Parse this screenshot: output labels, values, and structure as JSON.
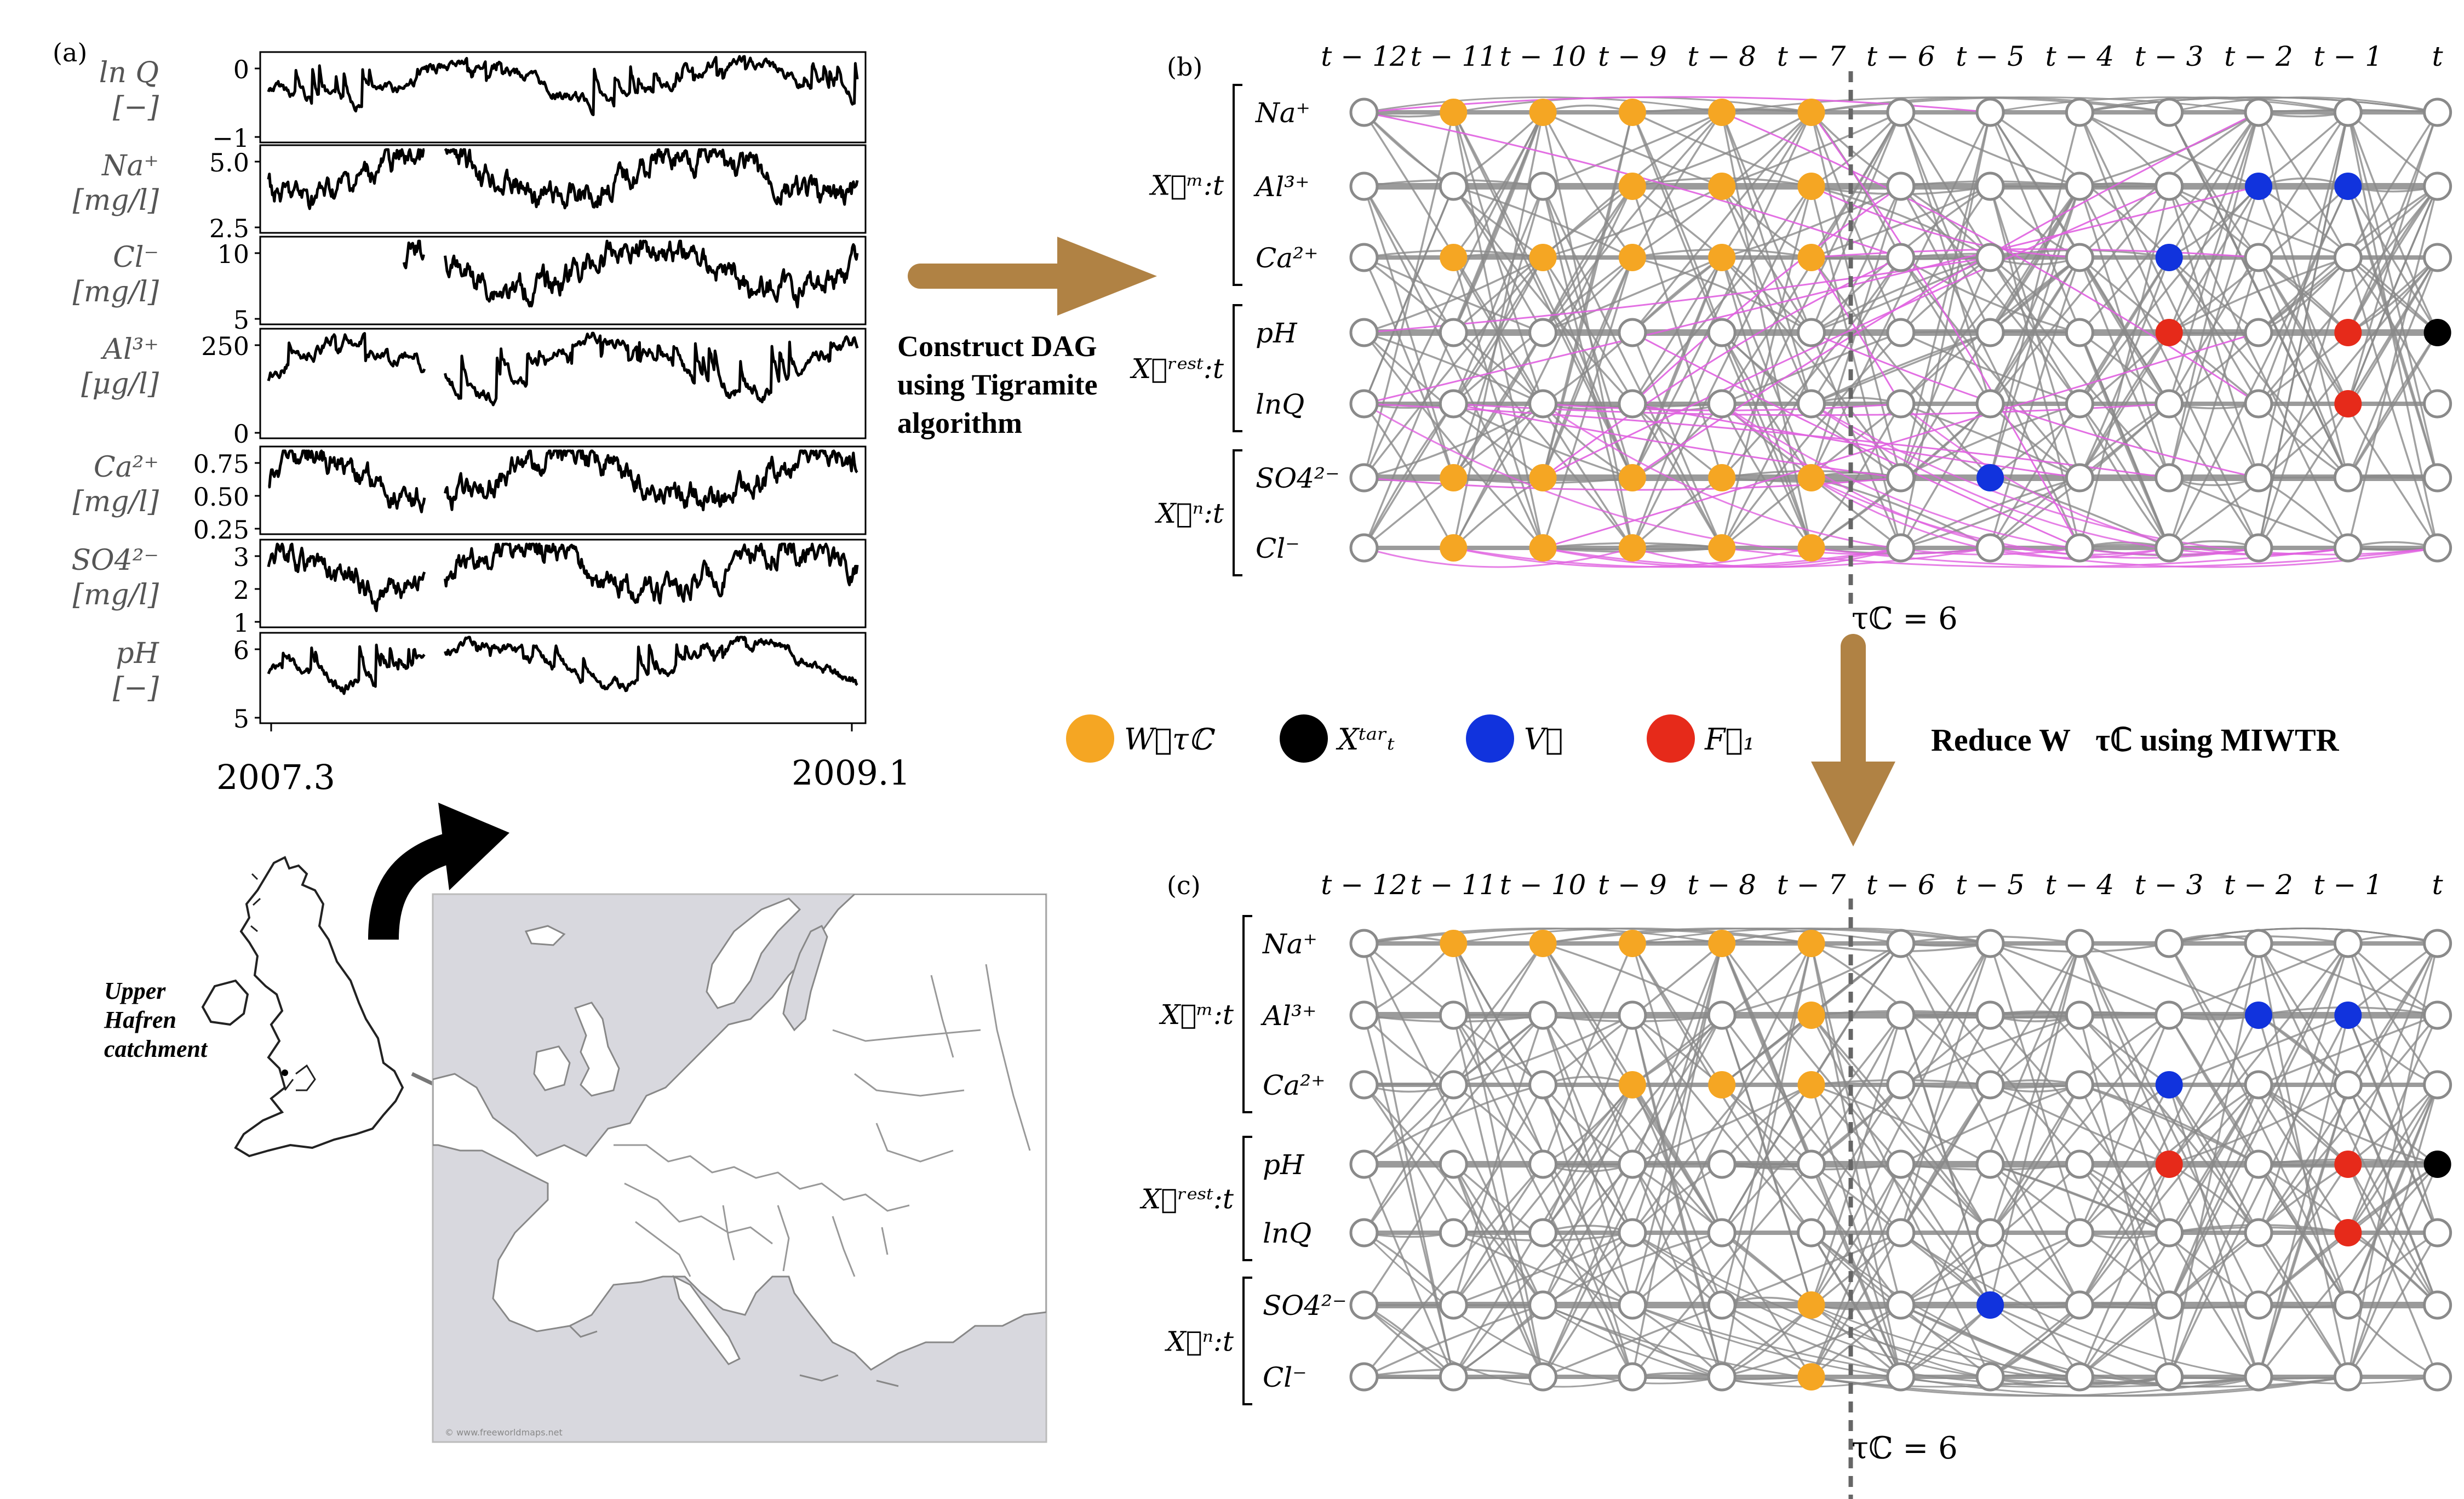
{
  "colors": {
    "orange": "#F5A623",
    "black": "#000000",
    "blue": "#1133DD",
    "red": "#E62A1A",
    "gray": "#888888",
    "magenta": "#E060E0",
    "arrow": "#B08244",
    "mapsea": "#D8D8DE"
  },
  "panel_a": {
    "label": "(a)",
    "date_start": "2007.3",
    "date_end": "2009.1",
    "rows": [
      {
        "name": "ln Q",
        "unit": "[−]",
        "ticks": [
          "0",
          "−1"
        ]
      },
      {
        "name": "Na⁺",
        "unit": "[mg/l]",
        "ticks": [
          "5.0",
          "2.5"
        ]
      },
      {
        "name": "Cl⁻",
        "unit": "[mg/l]",
        "ticks": [
          "10",
          "5"
        ]
      },
      {
        "name": "Al³⁺",
        "unit": "[μg/l]",
        "ticks": [
          "250",
          "0"
        ]
      },
      {
        "name": "Ca²⁺",
        "unit": "[mg/l]",
        "ticks": [
          "0.75",
          "0.50",
          "0.25"
        ]
      },
      {
        "name": "SO4²⁻",
        "unit": "[mg/l]",
        "ticks": [
          "3",
          "2",
          "1"
        ]
      },
      {
        "name": "pH",
        "unit": "[−]",
        "ticks": [
          "6",
          "5"
        ]
      }
    ]
  },
  "arrow1_text": [
    "Construct DAG",
    "using Tigramite",
    "algorithm"
  ],
  "map": {
    "catchment_label": [
      "Upper",
      "Hafren",
      "catchment"
    ],
    "watermark": "© www.freeworldmaps.net"
  },
  "dag": {
    "time_labels": [
      "t − 12",
      "t − 11",
      "t − 10",
      "t − 9",
      "t − 8",
      "t − 7",
      "t − 6",
      "t − 5",
      "t − 4",
      "t − 3",
      "t − 2",
      "t − 1",
      "t"
    ],
    "var_labels": [
      "Na⁺",
      "Al³⁺",
      "Ca²⁺",
      "pH",
      "lnQ",
      "SO4²⁻",
      "Cl⁻"
    ],
    "groups": [
      {
        "label": "X⃗ᵐ:t",
        "rows": [
          0,
          2
        ]
      },
      {
        "label": "X⃗ʳᵉˢᵗ:t",
        "rows": [
          3,
          4
        ]
      },
      {
        "label": "X⃗ⁿ:t",
        "rows": [
          5,
          6
        ]
      }
    ],
    "tau_label": "τℂ = 6"
  },
  "panel_b": {
    "label": "(b)",
    "highlights": [
      {
        "row": 0,
        "col": 1,
        "c": "orange"
      },
      {
        "row": 0,
        "col": 2,
        "c": "orange"
      },
      {
        "row": 0,
        "col": 3,
        "c": "orange"
      },
      {
        "row": 0,
        "col": 4,
        "c": "orange"
      },
      {
        "row": 0,
        "col": 5,
        "c": "orange"
      },
      {
        "row": 1,
        "col": 3,
        "c": "orange"
      },
      {
        "row": 1,
        "col": 4,
        "c": "orange"
      },
      {
        "row": 1,
        "col": 5,
        "c": "orange"
      },
      {
        "row": 1,
        "col": 10,
        "c": "blue"
      },
      {
        "row": 1,
        "col": 11,
        "c": "blue"
      },
      {
        "row": 2,
        "col": 1,
        "c": "orange"
      },
      {
        "row": 2,
        "col": 2,
        "c": "orange"
      },
      {
        "row": 2,
        "col": 3,
        "c": "orange"
      },
      {
        "row": 2,
        "col": 4,
        "c": "orange"
      },
      {
        "row": 2,
        "col": 5,
        "c": "orange"
      },
      {
        "row": 2,
        "col": 9,
        "c": "blue"
      },
      {
        "row": 3,
        "col": 9,
        "c": "red"
      },
      {
        "row": 3,
        "col": 11,
        "c": "red"
      },
      {
        "row": 3,
        "col": 12,
        "c": "black"
      },
      {
        "row": 4,
        "col": 11,
        "c": "red"
      },
      {
        "row": 5,
        "col": 1,
        "c": "orange"
      },
      {
        "row": 5,
        "col": 2,
        "c": "orange"
      },
      {
        "row": 5,
        "col": 3,
        "c": "orange"
      },
      {
        "row": 5,
        "col": 4,
        "c": "orange"
      },
      {
        "row": 5,
        "col": 5,
        "c": "orange"
      },
      {
        "row": 5,
        "col": 7,
        "c": "blue"
      },
      {
        "row": 6,
        "col": 1,
        "c": "orange"
      },
      {
        "row": 6,
        "col": 2,
        "c": "orange"
      },
      {
        "row": 6,
        "col": 3,
        "c": "orange"
      },
      {
        "row": 6,
        "col": 4,
        "c": "orange"
      },
      {
        "row": 6,
        "col": 5,
        "c": "orange"
      }
    ]
  },
  "panel_c": {
    "label": "(c)",
    "highlights": [
      {
        "row": 0,
        "col": 1,
        "c": "orange"
      },
      {
        "row": 0,
        "col": 2,
        "c": "orange"
      },
      {
        "row": 0,
        "col": 3,
        "c": "orange"
      },
      {
        "row": 0,
        "col": 4,
        "c": "orange"
      },
      {
        "row": 0,
        "col": 5,
        "c": "orange"
      },
      {
        "row": 1,
        "col": 5,
        "c": "orange"
      },
      {
        "row": 1,
        "col": 10,
        "c": "blue"
      },
      {
        "row": 1,
        "col": 11,
        "c": "blue"
      },
      {
        "row": 2,
        "col": 3,
        "c": "orange"
      },
      {
        "row": 2,
        "col": 4,
        "c": "orange"
      },
      {
        "row": 2,
        "col": 5,
        "c": "orange"
      },
      {
        "row": 2,
        "col": 9,
        "c": "blue"
      },
      {
        "row": 3,
        "col": 9,
        "c": "red"
      },
      {
        "row": 3,
        "col": 11,
        "c": "red"
      },
      {
        "row": 3,
        "col": 12,
        "c": "black"
      },
      {
        "row": 4,
        "col": 11,
        "c": "red"
      },
      {
        "row": 5,
        "col": 5,
        "c": "orange"
      },
      {
        "row": 5,
        "col": 7,
        "c": "blue"
      },
      {
        "row": 6,
        "col": 5,
        "c": "orange"
      }
    ]
  },
  "legend": [
    {
      "color": "orange",
      "label": "W⃗τℂ"
    },
    {
      "color": "black",
      "label": "Xᵗᵃʳₜ"
    },
    {
      "color": "blue",
      "label": "V⃗"
    },
    {
      "color": "red",
      "label": "F⃗₁"
    }
  ],
  "arrow2_text": "Reduce W⃗τℂ using MIWTR"
}
